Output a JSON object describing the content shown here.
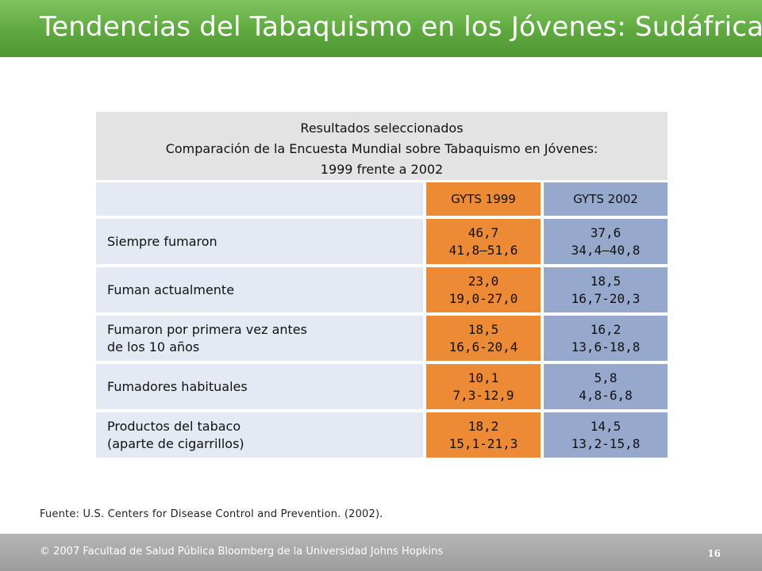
{
  "slide": {
    "title": "Tendencias del Tabaquismo en los Jóvenes: Sudáfrica",
    "source": "Fuente: U.S. Centers for Disease Control and Prevention. (2002).",
    "footer": "© 2007 Facultad de Salud Pública Bloomberg de la Universidad Johns Hopkins",
    "page_number": "16"
  },
  "table": {
    "header": {
      "line1": "Resultados seleccionados",
      "line2": "Comparación de la Encuesta Mundial sobre Tabaquismo en Jóvenes:",
      "line3": "1999 frente a 2002"
    },
    "columns": {
      "blank": "",
      "col1999": "GYTS 1999",
      "col2002": "GYTS 2002"
    },
    "rows": [
      {
        "label1": "Siempre fumaron",
        "label2": "",
        "v1999": "46,7",
        "ci1999": "41,8–51,6",
        "v2002": "37,6",
        "ci2002": "34,4–40,8"
      },
      {
        "label1": "Fuman actualmente",
        "label2": "",
        "v1999": "23,0",
        "ci1999": "19,0-27,0",
        "v2002": "18,5",
        "ci2002": "16,7-20,3"
      },
      {
        "label1": "Fumaron por primera vez antes",
        "label2": "de los 10 años",
        "v1999": "18,5",
        "ci1999": "16,6-20,4",
        "v2002": "16,2",
        "ci2002": "13,6-18,8"
      },
      {
        "label1": "Fumadores habituales",
        "label2": "",
        "v1999": "10,1",
        "ci1999": "7,3-12,9",
        "v2002": "5,8",
        "ci2002": "4,8-6,8"
      },
      {
        "label1": "Productos del tabaco",
        "label2": "(aparte de cigarrillos)",
        "v1999": "18,2",
        "ci1999": "15,1-21,3",
        "v2002": "14,5",
        "ci2002": "13,2-15,8"
      }
    ]
  },
  "colors": {
    "title_bar": "#5fa83f",
    "col_1999": "#ed8a35",
    "col_2002": "#96a8cc",
    "label_bg": "#e4e9f4",
    "header_bg": "#e3e3e3",
    "footer_bar": "#a8a8a8"
  }
}
